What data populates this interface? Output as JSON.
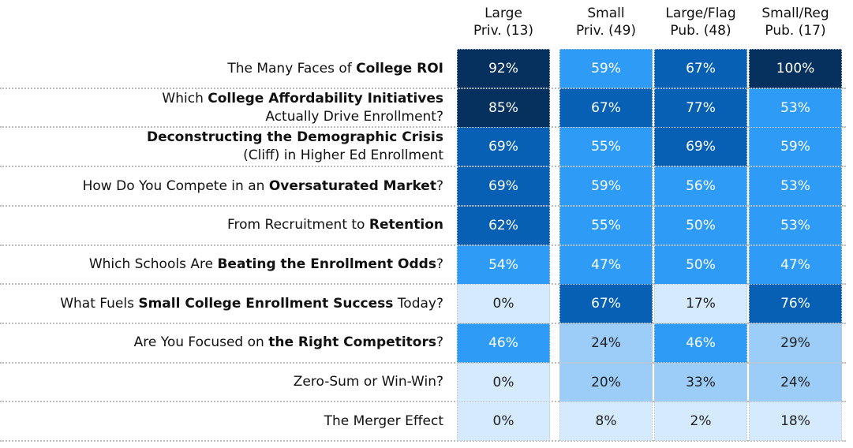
{
  "chart_data": {
    "type": "heatmap",
    "columns": [
      [
        "Large",
        "Priv. (13)"
      ],
      [
        "Small",
        "Priv. (49)"
      ],
      [
        "Large/Flag",
        "Pub. (48)"
      ],
      [
        "Small/Reg",
        "Pub. (17)"
      ]
    ],
    "rows": [
      {
        "label_lines": [
          [
            [
              "The Many Faces of ",
              false
            ],
            [
              "College ROI",
              true
            ]
          ]
        ],
        "values": [
          "92%",
          "59%",
          "67%",
          "100%"
        ]
      },
      {
        "label_lines": [
          [
            [
              "Which ",
              false
            ],
            [
              "College Affordability Initiatives",
              true
            ]
          ],
          [
            [
              "Actually Drive Enrollment?",
              false
            ]
          ]
        ],
        "values": [
          "85%",
          "67%",
          "77%",
          "53%"
        ]
      },
      {
        "label_lines": [
          [
            [
              "Deconstructing the Demographic Crisis",
              true
            ]
          ],
          [
            [
              "(Cliff) in Higher Ed Enrollment",
              false
            ]
          ]
        ],
        "values": [
          "69%",
          "55%",
          "69%",
          "59%"
        ]
      },
      {
        "label_lines": [
          [
            [
              "How Do You Compete in an ",
              false
            ],
            [
              "Oversaturated Market",
              true
            ],
            [
              "?",
              false
            ]
          ]
        ],
        "values": [
          "69%",
          "59%",
          "56%",
          "53%"
        ]
      },
      {
        "label_lines": [
          [
            [
              "From Recruitment to ",
              false
            ],
            [
              "Retention",
              true
            ]
          ]
        ],
        "values": [
          "62%",
          "55%",
          "50%",
          "53%"
        ]
      },
      {
        "label_lines": [
          [
            [
              "Which Schools Are ",
              false
            ],
            [
              "Beating the Enrollment Odds",
              true
            ],
            [
              "?",
              false
            ]
          ]
        ],
        "values": [
          "54%",
          "47%",
          "50%",
          "47%"
        ]
      },
      {
        "label_lines": [
          [
            [
              "What Fuels ",
              false
            ],
            [
              "Small College Enrollment Success",
              true
            ],
            [
              " Today?",
              false
            ]
          ]
        ],
        "values": [
          "0%",
          "67%",
          "17%",
          "76%"
        ]
      },
      {
        "label_lines": [
          [
            [
              "Are You Focused on ",
              false
            ],
            [
              "the Right Competitors",
              true
            ],
            [
              "?",
              false
            ]
          ]
        ],
        "values": [
          "46%",
          "24%",
          "46%",
          "29%"
        ]
      },
      {
        "label_lines": [
          [
            [
              "Zero-Sum or Win-Win?",
              false
            ]
          ]
        ],
        "values": [
          "0%",
          "20%",
          "33%",
          "24%"
        ]
      },
      {
        "label_lines": [
          [
            [
              "The Merger Effect",
              false
            ]
          ]
        ],
        "values": [
          "0%",
          "8%",
          "2%",
          "18%"
        ]
      }
    ],
    "color_scale": [
      {
        "min": 80,
        "bg": "#06315f",
        "fg": "#ffffff"
      },
      {
        "min": 60,
        "bg": "#0760b4",
        "fg": "#ffffff"
      },
      {
        "min": 40,
        "bg": "#2e9cf6",
        "fg": "#ffffff"
      },
      {
        "min": 20,
        "bg": "#9ccdf9",
        "fg": "#222222"
      },
      {
        "min": 0,
        "bg": "#d5ebfd",
        "fg": "#222222"
      }
    ],
    "grid": true,
    "legend": "none"
  }
}
